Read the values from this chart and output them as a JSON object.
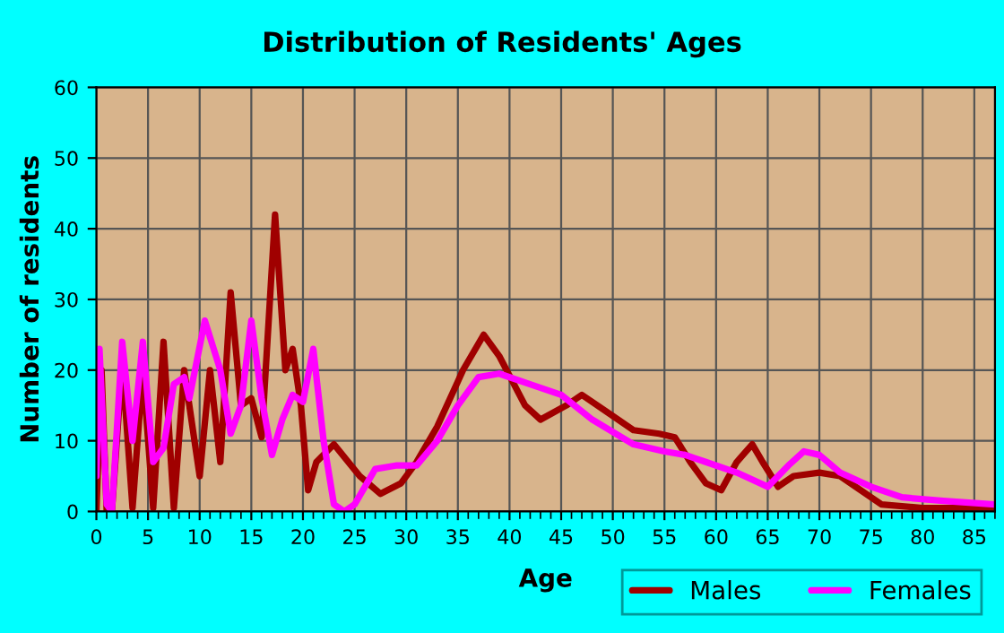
{
  "chart_data": {
    "type": "line",
    "title": "Distribution of Residents' Ages",
    "xlabel": "Age",
    "ylabel": "Number of residents",
    "xlim": [
      0,
      87
    ],
    "ylim": [
      0,
      60
    ],
    "xticks": [
      0,
      5,
      10,
      15,
      20,
      25,
      30,
      35,
      40,
      45,
      50,
      55,
      60,
      65,
      70,
      75,
      80,
      85
    ],
    "yticks": [
      0,
      10,
      20,
      30,
      40,
      50,
      60
    ],
    "grid": true,
    "legend": "bottom right",
    "line_style": "solid",
    "series": [
      {
        "name": "Males",
        "color": "#a00000",
        "x": [
          0,
          0.5,
          1,
          1.5,
          2.5,
          3.5,
          4.5,
          5.5,
          6.5,
          7.5,
          8.5,
          10,
          11,
          12,
          13,
          14,
          15,
          16,
          17.3,
          18.3,
          19,
          19.8,
          20.5,
          21.3,
          23,
          25.5,
          27.5,
          29.5,
          31,
          33,
          35.5,
          37.5,
          39,
          41.5,
          43,
          45.5,
          47,
          49.5,
          52,
          54.5,
          56,
          57.5,
          59,
          60.5,
          62,
          63.5,
          64.5,
          66,
          67.5,
          70,
          72,
          74,
          76,
          80,
          87
        ],
        "values": [
          0,
          20,
          0,
          0,
          21,
          0.5,
          20,
          0.5,
          24,
          0.5,
          20,
          5,
          20,
          7,
          31,
          15,
          16,
          10.5,
          42,
          20,
          23,
          15,
          3,
          7,
          9.5,
          5,
          2.5,
          4,
          7,
          12,
          20,
          25,
          22,
          15,
          13,
          15,
          16.5,
          14,
          11.5,
          11,
          10.5,
          7,
          4,
          3,
          7,
          9.5,
          7,
          3.5,
          5,
          5.5,
          5,
          3,
          1,
          0.5,
          0.5
        ]
      },
      {
        "name": "Females",
        "color": "#ff00ff",
        "x": [
          0,
          0.3,
          1,
          1.5,
          2.5,
          3.5,
          4.5,
          5.5,
          6.5,
          7.5,
          8.5,
          9,
          10.5,
          12,
          13,
          14,
          15,
          16,
          17,
          18,
          19,
          20,
          21,
          22,
          23,
          24,
          25,
          27,
          29,
          31,
          33,
          35,
          37,
          39,
          42,
          45,
          48,
          52,
          55,
          57,
          59,
          62,
          65,
          67,
          68.5,
          70,
          72,
          75,
          78,
          82,
          87
        ],
        "values": [
          5,
          23,
          1,
          0,
          24,
          10,
          24,
          7,
          9,
          18,
          19,
          16,
          27,
          20,
          11,
          15,
          27,
          16,
          8,
          13,
          16.5,
          15.5,
          23,
          10,
          1,
          0,
          1,
          6,
          6.5,
          6.5,
          10,
          15,
          19,
          19.5,
          18,
          16.5,
          13,
          9.5,
          8.5,
          8,
          7,
          5.5,
          3.5,
          6.5,
          8.5,
          8,
          5.5,
          3.5,
          2,
          1.5,
          1
        ]
      }
    ]
  }
}
